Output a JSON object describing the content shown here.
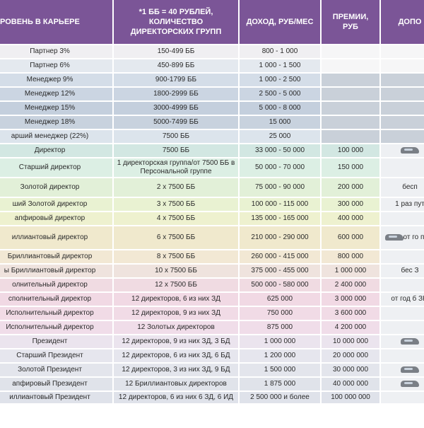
{
  "headers": {
    "level": "РОВЕНЬ В КАРЬЕРЕ",
    "groups": "*1 ББ = 40 РУБЛЕЙ, КОЛИЧЕСТВО ДИРЕКТОРСКИХ ГРУПП",
    "income": "ДОХОД, РУБ/МЕС",
    "bonus": "ПРЕМИИ, РУБ",
    "extra": "ДОПО"
  },
  "rows": [
    {
      "level": "Партнер 3%",
      "groups": "150-499 ББ",
      "income": "800 - 1 000",
      "bonus": "",
      "bg": "#f0eff2"
    },
    {
      "level": "Партнер 6%",
      "groups": "450-899 ББ",
      "income": "1 000 - 1 500",
      "bonus": "",
      "bg": "#e4e9ef"
    },
    {
      "level": "Менеджер 9%",
      "groups": "900-1799 ББ",
      "income": "1 000 - 2 500",
      "bonus": "",
      "bg": "#d4dde8"
    },
    {
      "level": "Менеджер 12%",
      "groups": "1800-2999 ББ",
      "income": "2 500 - 5 000",
      "bonus": "",
      "bg": "#cbd5e2"
    },
    {
      "level": "Менеджер 15%",
      "groups": "3000-4999 ББ",
      "income": "5 000 - 8 000",
      "bonus": "",
      "bg": "#c4cfdd"
    },
    {
      "level": "Менеджер 18%",
      "groups": "5000-7499 ББ",
      "income": "15 000",
      "bonus": "",
      "bg": "#c8d2de"
    },
    {
      "level": "арший менеджер (22%)",
      "groups": "7500 ББ",
      "income": "25 000",
      "bonus": "",
      "bg": "#dce4ec"
    },
    {
      "level": "Директор",
      "groups": "7500 ББ",
      "income": "33 000 - 50 000",
      "bonus": "100 000",
      "bg": "#d2e7e2"
    },
    {
      "level": "Старший директор",
      "groups": "1 директорская группа/от 7500 ББ в Персональной группе",
      "income": "50 000 - 70 000",
      "bonus": "150 000",
      "bg": "#dcefe4"
    },
    {
      "level": "Золотой директор",
      "groups": "2 х 7500 ББ",
      "income": "75 000 - 90 000",
      "bonus": "200 000",
      "bg": "#e2f0d8"
    },
    {
      "level": "ший Золотой директор",
      "groups": "3 х 7500 ББ",
      "income": "100 000 - 115 000",
      "bonus": "300 000",
      "bg": "#e9f2d2"
    },
    {
      "level": "апфировый директор",
      "groups": "4 х 7500 ББ",
      "income": "135 000 - 165 000",
      "bonus": "400 000",
      "bg": "#eef1cf"
    },
    {
      "level": "иллиантовый директор",
      "groups": "6 х 7500 ББ",
      "income": "210 000 - 290 000",
      "bonus": "600 000",
      "bg": "#f0e9cd"
    },
    {
      "level": "Бриллиантовый директор",
      "groups": "8 х 7500 ББ",
      "income": "260 000 - 415 000",
      "bonus": "800 000",
      "bg": "#f2e8d4"
    },
    {
      "level": "ы Бриллиантовый директор",
      "groups": "10 х 7500 ББ",
      "income": "375 000 - 455 000",
      "bonus": "1 000 000",
      "bg": "#efe3de"
    },
    {
      "level": "олнительный директор",
      "groups": "12 х 7500 ББ",
      "income": "500 000 - 580 000",
      "bonus": "2 400 000",
      "bg": "#f0dbe2"
    },
    {
      "level": "сполнительный директор",
      "groups": "12 директоров, 6 из них ЗД",
      "income": "625 000",
      "bonus": "3 000 000",
      "bg": "#f1d9e4"
    },
    {
      "level": "Исполнительный директор",
      "groups": "12 директоров, 9 из них ЗД",
      "income": "750 000",
      "bonus": "3 600 000",
      "bg": "#f1dbe6"
    },
    {
      "level": "Исполнительный директор",
      "groups": "12 Золотых директоров",
      "income": "875 000",
      "bonus": "4 200 000",
      "bg": "#f0dde9"
    },
    {
      "level": "Президент",
      "groups": "12 директоров, 9 из них ЗД, 3 БД",
      "income": "1 000 000",
      "bonus": "10 000 000",
      "bg": "#ebe4ee"
    },
    {
      "level": "Старший Президент",
      "groups": "12 директоров, 6 из них ЗД, 6 БД",
      "income": "1 200 000",
      "bonus": "20 000 000",
      "bg": "#e6e6ee"
    },
    {
      "level": "Золотой Президент",
      "groups": "12 директоров, 3 из них ЗД, 9 БД",
      "income": "1 500 000",
      "bonus": "30 000 000",
      "bg": "#e3e5ec"
    },
    {
      "level": "апфировый Президент",
      "groups": "12 Бриллиантовых директоров",
      "income": "1 875 000",
      "bonus": "40 000 000",
      "bg": "#e0e3ea"
    },
    {
      "level": "иллиантовый Президент",
      "groups": "12 директоров, 6 из них 6 ЗД, 6 ИД",
      "income": "2 500 000 и более",
      "bonus": "100 000 000",
      "bg": "#dfe2ea"
    }
  ],
  "extras": {
    "r9": "бесп",
    "r10": "1 раз пут",
    "r12": "от го путе",
    "r14": "бес З",
    "r16": "от год б ЗК/"
  },
  "icons": {
    "car": "car-icon"
  }
}
